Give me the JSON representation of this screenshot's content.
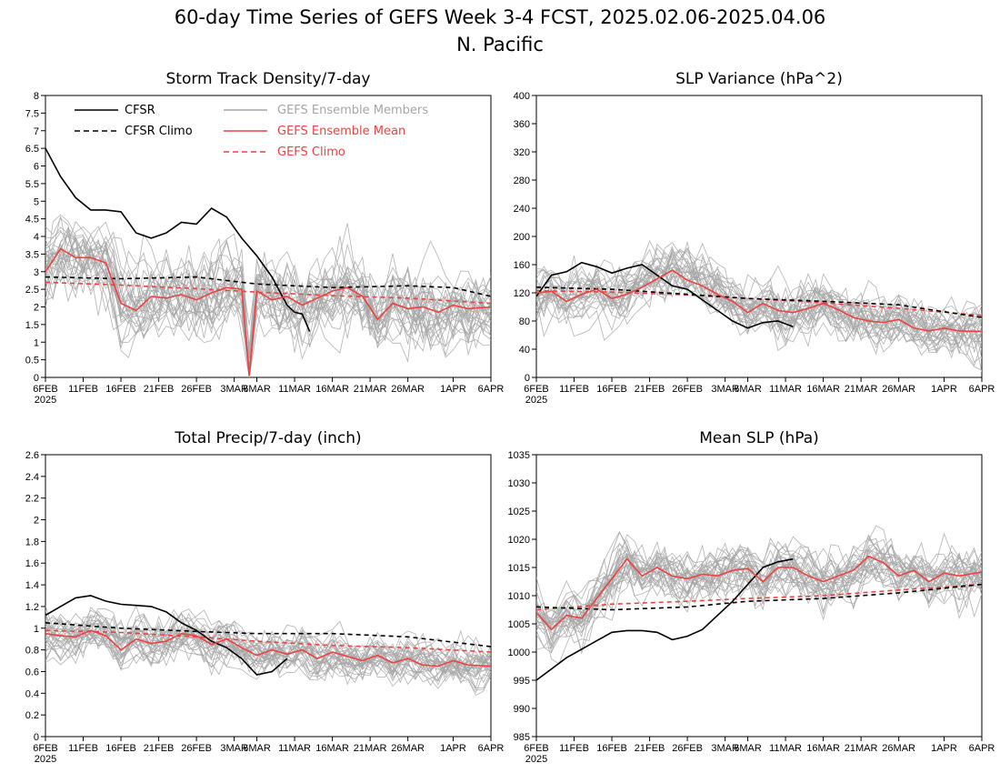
{
  "figure": {
    "title": "60-day Time Series of GEFS Week 3-4 FCST, 2025.02.06-2025.04.06",
    "subtitle": "N. Pacific"
  },
  "colors": {
    "cfsr": "#000000",
    "members": "#a6a6a6",
    "ens_mean": "#f04040",
    "gefs_climo": "#f04040"
  },
  "legend": {
    "cfsr": "CFSR",
    "cfsr_climo": "CFSR Climo",
    "members": "GEFS Ensemble Members",
    "ens_mean": "GEFS Ensemble Mean",
    "gefs_climo": "GEFS Climo"
  },
  "x_axis": {
    "start_date": "2025-02-06",
    "end_date": "2025-04-06",
    "tick_labels": [
      "6FEB",
      "11FEB",
      "16FEB",
      "21FEB",
      "26FEB",
      "3MAR",
      "6MAR",
      "11MAR",
      "16MAR",
      "21MAR",
      "26MAR",
      "1APR",
      "6APR"
    ],
    "tick_dates": [
      "2025-02-06",
      "2025-02-11",
      "2025-02-16",
      "2025-02-21",
      "2025-02-26",
      "2025-03-03",
      "2025-03-06",
      "2025-03-11",
      "2025-03-16",
      "2025-03-21",
      "2025-03-26",
      "2025-04-01",
      "2025-04-06"
    ],
    "year_label": "2025"
  },
  "chart_data": [
    {
      "type": "line",
      "title": "Storm Track Density/7-day",
      "ylim": [
        0,
        8
      ],
      "yticks": [
        0,
        0.5,
        1,
        1.5,
        2,
        2.5,
        3,
        3.5,
        4,
        4.5,
        5,
        5.5,
        6,
        6.5,
        7,
        7.5,
        8
      ],
      "ytick_labels": [
        "0",
        "0.5",
        "1",
        "1.5",
        "2",
        "2.5",
        "3",
        "3.5",
        "4",
        "4.5",
        "5",
        "5.5",
        "6",
        "6.5",
        "7",
        "7.5",
        "8"
      ],
      "members": {
        "count": 30,
        "spread": 0.75,
        "seed": 11
      },
      "series": [
        {
          "name": "CFSR",
          "style": "solid-black",
          "x": [
            "2025-02-06",
            "2025-02-08",
            "2025-02-10",
            "2025-02-12",
            "2025-02-14",
            "2025-02-16",
            "2025-02-18",
            "2025-02-20",
            "2025-02-22",
            "2025-02-24",
            "2025-02-26",
            "2025-02-28",
            "2025-03-02",
            "2025-03-04",
            "2025-03-06",
            "2025-03-08",
            "2025-03-10"
          ],
          "y": [
            6.5,
            5.7,
            5.1,
            4.75,
            4.75,
            4.7,
            4.1,
            3.95,
            4.1,
            4.4,
            4.35,
            4.8,
            4.55,
            3.95,
            3.45,
            2.85,
            2.05
          ]
        },
        {
          "name": "CFSR",
          "style": "solid-black",
          "x": [
            "2025-03-10",
            "2025-03-11",
            "2025-03-12",
            "2025-03-13"
          ],
          "y": [
            2.05,
            1.85,
            1.8,
            1.3
          ]
        },
        {
          "name": "CFSR Climo",
          "style": "dashed-black",
          "x": [
            "2025-02-06",
            "2025-02-16",
            "2025-02-26",
            "2025-03-06",
            "2025-03-16",
            "2025-03-26",
            "2025-04-01",
            "2025-04-06"
          ],
          "y": [
            2.85,
            2.8,
            2.85,
            2.65,
            2.55,
            2.6,
            2.55,
            2.3
          ]
        },
        {
          "name": "GEFS Ensemble Mean",
          "style": "solid-red",
          "x": [
            "2025-02-06",
            "2025-02-08",
            "2025-02-10",
            "2025-02-12",
            "2025-02-14",
            "2025-02-16",
            "2025-02-18",
            "2025-02-20",
            "2025-02-22",
            "2025-02-24",
            "2025-02-26",
            "2025-02-28",
            "2025-03-02",
            "2025-03-04",
            "2025-03-05",
            "2025-03-06",
            "2025-03-08",
            "2025-03-10",
            "2025-03-12",
            "2025-03-14",
            "2025-03-16",
            "2025-03-18",
            "2025-03-20",
            "2025-03-22",
            "2025-03-24",
            "2025-03-26",
            "2025-03-28",
            "2025-03-30",
            "2025-04-01",
            "2025-04-03",
            "2025-04-06"
          ],
          "y": [
            3.0,
            3.65,
            3.4,
            3.4,
            3.25,
            2.1,
            1.9,
            2.3,
            2.25,
            2.35,
            2.2,
            2.4,
            2.55,
            2.5,
            0.05,
            2.45,
            2.2,
            2.3,
            2.05,
            2.25,
            2.45,
            2.55,
            2.3,
            1.65,
            2.1,
            1.95,
            2.0,
            1.85,
            2.05,
            1.95,
            2.0
          ]
        },
        {
          "name": "GEFS Climo",
          "style": "dashed-red",
          "x": [
            "2025-02-06",
            "2025-02-16",
            "2025-02-26",
            "2025-03-06",
            "2025-03-16",
            "2025-03-26",
            "2025-04-06"
          ],
          "y": [
            2.7,
            2.62,
            2.52,
            2.42,
            2.32,
            2.25,
            2.1
          ]
        }
      ]
    },
    {
      "type": "line",
      "title": "SLP Variance (hPa^2)",
      "ylim": [
        0,
        400
      ],
      "yticks": [
        0,
        40,
        80,
        120,
        160,
        200,
        240,
        280,
        320,
        360,
        400
      ],
      "ytick_labels": [
        "0",
        "40",
        "80",
        "120",
        "160",
        "200",
        "240",
        "280",
        "320",
        "360",
        "400"
      ],
      "members": {
        "count": 30,
        "spread": 26,
        "seed": 23
      },
      "series": [
        {
          "name": "CFSR",
          "style": "solid-black",
          "x": [
            "2025-02-06",
            "2025-02-08",
            "2025-02-10",
            "2025-02-12",
            "2025-02-14",
            "2025-02-16",
            "2025-02-18",
            "2025-02-20",
            "2025-02-22",
            "2025-02-24",
            "2025-02-26",
            "2025-02-28",
            "2025-03-02",
            "2025-03-04",
            "2025-03-06",
            "2025-03-08",
            "2025-03-10",
            "2025-03-12"
          ],
          "y": [
            115,
            145,
            150,
            163,
            157,
            148,
            155,
            160,
            145,
            130,
            125,
            110,
            95,
            80,
            70,
            78,
            80,
            72
          ]
        },
        {
          "name": "CFSR Climo",
          "style": "dashed-black",
          "x": [
            "2025-02-06",
            "2025-02-16",
            "2025-02-26",
            "2025-03-06",
            "2025-03-16",
            "2025-03-26",
            "2025-04-06"
          ],
          "y": [
            128,
            125,
            118,
            112,
            108,
            103,
            85
          ]
        },
        {
          "name": "GEFS Ensemble Mean",
          "style": "solid-red",
          "x": [
            "2025-02-06",
            "2025-02-08",
            "2025-02-10",
            "2025-02-12",
            "2025-02-14",
            "2025-02-16",
            "2025-02-18",
            "2025-02-20",
            "2025-02-22",
            "2025-02-24",
            "2025-02-26",
            "2025-02-28",
            "2025-03-02",
            "2025-03-04",
            "2025-03-06",
            "2025-03-08",
            "2025-03-10",
            "2025-03-12",
            "2025-03-14",
            "2025-03-16",
            "2025-03-18",
            "2025-03-20",
            "2025-03-22",
            "2025-03-24",
            "2025-03-26",
            "2025-03-28",
            "2025-03-30",
            "2025-04-01",
            "2025-04-03",
            "2025-04-06"
          ],
          "y": [
            120,
            122,
            108,
            118,
            125,
            112,
            118,
            128,
            140,
            152,
            138,
            130,
            118,
            108,
            92,
            105,
            95,
            92,
            98,
            105,
            96,
            85,
            80,
            78,
            82,
            70,
            66,
            70,
            66,
            65
          ]
        },
        {
          "name": "GEFS Climo",
          "style": "dashed-red",
          "x": [
            "2025-02-06",
            "2025-02-16",
            "2025-02-26",
            "2025-03-06",
            "2025-03-16",
            "2025-03-26",
            "2025-04-06"
          ],
          "y": [
            123,
            121,
            117,
            112,
            106,
            98,
            88
          ]
        }
      ]
    },
    {
      "type": "line",
      "title": "Total Precip/7-day (inch)",
      "ylim": [
        0,
        2.6
      ],
      "yticks": [
        0,
        0.2,
        0.4,
        0.6,
        0.8,
        1,
        1.2,
        1.4,
        1.6,
        1.8,
        2,
        2.2,
        2.4,
        2.6
      ],
      "ytick_labels": [
        "0",
        "0.2",
        "0.4",
        "0.6",
        "0.8",
        "1",
        "1.2",
        "1.4",
        "1.6",
        "1.8",
        "2",
        "2.2",
        "2.4",
        "2.6"
      ],
      "members": {
        "count": 30,
        "spread": 0.14,
        "seed": 37
      },
      "series": [
        {
          "name": "CFSR",
          "style": "solid-black",
          "x": [
            "2025-02-06",
            "2025-02-08",
            "2025-02-10",
            "2025-02-12",
            "2025-02-14",
            "2025-02-16",
            "2025-02-18",
            "2025-02-20",
            "2025-02-22",
            "2025-02-24",
            "2025-02-26",
            "2025-02-28",
            "2025-03-02",
            "2025-03-04",
            "2025-03-06",
            "2025-03-08",
            "2025-03-10"
          ],
          "y": [
            1.12,
            1.2,
            1.28,
            1.3,
            1.25,
            1.22,
            1.21,
            1.2,
            1.15,
            1.05,
            0.98,
            0.88,
            0.82,
            0.72,
            0.57,
            0.6,
            0.72
          ]
        },
        {
          "name": "CFSR Climo",
          "style": "dashed-black",
          "x": [
            "2025-02-06",
            "2025-02-16",
            "2025-02-26",
            "2025-03-06",
            "2025-03-16",
            "2025-03-26",
            "2025-04-06"
          ],
          "y": [
            1.05,
            1.0,
            0.97,
            0.95,
            0.95,
            0.92,
            0.83
          ]
        },
        {
          "name": "GEFS Ensemble Mean",
          "style": "solid-red",
          "x": [
            "2025-02-06",
            "2025-02-08",
            "2025-02-10",
            "2025-02-12",
            "2025-02-14",
            "2025-02-16",
            "2025-02-18",
            "2025-02-20",
            "2025-02-22",
            "2025-02-24",
            "2025-02-26",
            "2025-02-28",
            "2025-03-02",
            "2025-03-04",
            "2025-03-06",
            "2025-03-08",
            "2025-03-10",
            "2025-03-12",
            "2025-03-14",
            "2025-03-16",
            "2025-03-18",
            "2025-03-20",
            "2025-03-22",
            "2025-03-24",
            "2025-03-26",
            "2025-03-28",
            "2025-03-30",
            "2025-04-01",
            "2025-04-03",
            "2025-04-06"
          ],
          "y": [
            0.95,
            0.93,
            0.92,
            0.98,
            0.93,
            0.8,
            0.9,
            0.86,
            0.88,
            0.95,
            0.93,
            0.85,
            0.9,
            0.82,
            0.75,
            0.8,
            0.76,
            0.8,
            0.72,
            0.78,
            0.74,
            0.7,
            0.75,
            0.68,
            0.72,
            0.66,
            0.65,
            0.7,
            0.66,
            0.65
          ]
        },
        {
          "name": "GEFS Climo",
          "style": "dashed-red",
          "x": [
            "2025-02-06",
            "2025-02-16",
            "2025-02-26",
            "2025-03-06",
            "2025-03-16",
            "2025-03-26",
            "2025-04-06"
          ],
          "y": [
            0.98,
            0.96,
            0.92,
            0.88,
            0.84,
            0.82,
            0.78
          ]
        }
      ]
    },
    {
      "type": "line",
      "title": "Mean SLP (hPa)",
      "ylim": [
        985,
        1035
      ],
      "yticks": [
        985,
        990,
        995,
        1000,
        1005,
        1010,
        1015,
        1020,
        1025,
        1030,
        1035
      ],
      "ytick_labels": [
        "985",
        "990",
        "995",
        "1000",
        "1005",
        "1010",
        "1015",
        "1020",
        "1025",
        "1030",
        "1035"
      ],
      "members": {
        "count": 30,
        "spread": 3.2,
        "seed": 53
      },
      "series": [
        {
          "name": "CFSR",
          "style": "solid-black",
          "x": [
            "2025-02-06",
            "2025-02-08",
            "2025-02-10",
            "2025-02-12",
            "2025-02-14",
            "2025-02-16",
            "2025-02-18",
            "2025-02-20",
            "2025-02-22",
            "2025-02-24",
            "2025-02-26",
            "2025-02-28",
            "2025-03-02",
            "2025-03-04",
            "2025-03-06",
            "2025-03-08",
            "2025-03-10",
            "2025-03-12"
          ],
          "y": [
            995,
            997,
            999,
            1000.5,
            1002,
            1003.5,
            1003.8,
            1003.8,
            1003.5,
            1002.2,
            1002.8,
            1004,
            1006.5,
            1009,
            1012,
            1015,
            1016,
            1016.5
          ]
        },
        {
          "name": "CFSR Climo",
          "style": "dashed-black",
          "x": [
            "2025-02-06",
            "2025-02-16",
            "2025-02-26",
            "2025-03-06",
            "2025-03-16",
            "2025-03-26",
            "2025-04-06"
          ],
          "y": [
            1008,
            1007.5,
            1008,
            1009,
            1009.5,
            1010.5,
            1012
          ]
        },
        {
          "name": "GEFS Ensemble Mean",
          "style": "solid-red",
          "x": [
            "2025-02-06",
            "2025-02-08",
            "2025-02-10",
            "2025-02-12",
            "2025-02-14",
            "2025-02-16",
            "2025-02-18",
            "2025-02-20",
            "2025-02-22",
            "2025-02-24",
            "2025-02-26",
            "2025-02-28",
            "2025-03-02",
            "2025-03-04",
            "2025-03-06",
            "2025-03-08",
            "2025-03-10",
            "2025-03-12",
            "2025-03-14",
            "2025-03-16",
            "2025-03-18",
            "2025-03-20",
            "2025-03-22",
            "2025-03-24",
            "2025-03-26",
            "2025-03-28",
            "2025-03-30",
            "2025-04-01",
            "2025-04-03",
            "2025-04-06"
          ],
          "y": [
            1007,
            1004,
            1006.5,
            1006,
            1009.5,
            1013,
            1016.5,
            1013.5,
            1015,
            1013.5,
            1013,
            1013.8,
            1013.5,
            1014.5,
            1014.8,
            1012.5,
            1015,
            1015,
            1013.5,
            1012.5,
            1013.5,
            1014.5,
            1017,
            1015.8,
            1013.5,
            1014.5,
            1012.5,
            1014,
            1013.5,
            1014.2
          ]
        },
        {
          "name": "GEFS Climo",
          "style": "dashed-red",
          "x": [
            "2025-02-06",
            "2025-02-16",
            "2025-02-26",
            "2025-03-06",
            "2025-03-16",
            "2025-03-26",
            "2025-04-06"
          ],
          "y": [
            1007.5,
            1008.5,
            1009,
            1009.5,
            1010,
            1011,
            1012
          ]
        }
      ]
    }
  ]
}
